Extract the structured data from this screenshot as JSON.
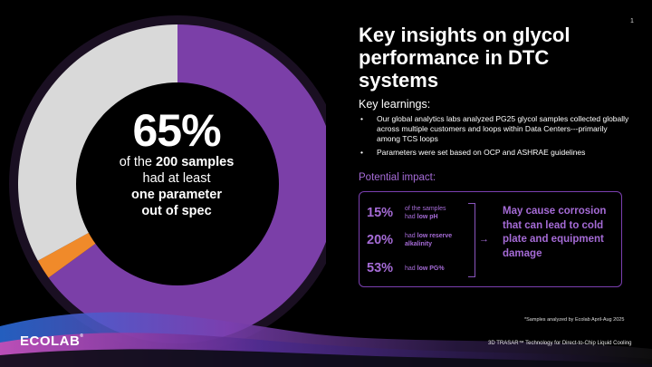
{
  "page_number": "1",
  "title": "Key insights on glycol performance in DTC systems",
  "donut": {
    "percentage": "65%",
    "line1_pre": "of the",
    "line1_bold": "200 samples",
    "line2": "had at least",
    "line3": "one parameter",
    "line4": "out of spec",
    "value_pct": 65,
    "segments": [
      {
        "name": "out of spec",
        "value": 65,
        "color": "#7b3fa8"
      },
      {
        "name": "orange accent",
        "value": 2,
        "color": "#f08a2a"
      },
      {
        "name": "remainder",
        "value": 33,
        "color": "#d9d9d9"
      }
    ]
  },
  "key_learnings": {
    "heading": "Key learnings:",
    "bullets": [
      "Our global analytics labs analyzed PG25 glycol samples collected globally across multiple customers and loops within Data Centers---primarily among TCS loops",
      "Parameters were set based on OCP and ASHRAE guidelines"
    ]
  },
  "impact": {
    "heading": "Potential impact:",
    "stats": [
      {
        "pct": "15%",
        "desc_pre": "of the samples",
        "desc_mid": "had ",
        "desc_bold": "low pH"
      },
      {
        "pct": "20%",
        "desc_pre": "",
        "desc_mid": "had ",
        "desc_bold": "low reserve alkalinity"
      },
      {
        "pct": "53%",
        "desc_pre": "",
        "desc_mid": "had ",
        "desc_bold": "low PG%"
      }
    ],
    "effect": "May cause corrosion that can lead to cold plate and equipment damage"
  },
  "footnote": "*Samples analyzed by Ecolab April-Aug 2025",
  "logo": "ECOLAB",
  "product_line": "3D TRASAR™ Technology for Direct-to-Chip Liquid Cooling",
  "colors": {
    "background": "#000000",
    "accent_purple": "#a56bd6",
    "donut_purple": "#7b3fa8",
    "donut_gray": "#d9d9d9",
    "orange": "#f08a2a"
  }
}
